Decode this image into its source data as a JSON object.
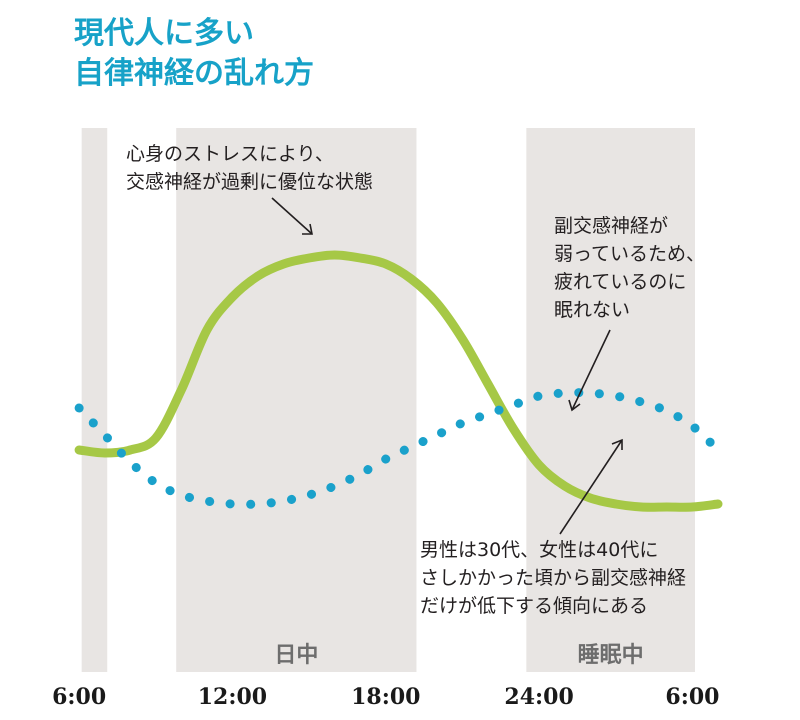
{
  "title_lines": [
    "現代人に多い",
    "自律神経の乱れ方"
  ],
  "colors": {
    "title": "#17a2c8",
    "sympathetic": "#a6c846",
    "parasympathetic": "#1aa1cb",
    "band": "#e8e5e3",
    "band_label": "#6d6d6d",
    "text": "#231f20"
  },
  "chart_data": {
    "type": "line",
    "title": "",
    "xlabel": "",
    "ylabel": "",
    "x_ticks": [
      "6:00",
      "12:00",
      "18:00",
      "24:00",
      "6:00"
    ],
    "x_tick_hours": [
      6,
      12,
      18,
      24,
      30
    ],
    "xlim": [
      5.8,
      31
    ],
    "ylim": [
      0,
      100
    ],
    "grid": false,
    "shaded_bands": [
      {
        "from": 6.1,
        "to": 7.1,
        "label": ""
      },
      {
        "from": 9.8,
        "to": 19.2,
        "label": "日中"
      },
      {
        "from": 23.5,
        "to": 30.1,
        "label": "睡眠中"
      }
    ],
    "series": [
      {
        "name": "",
        "style": "solid",
        "x": [
          6,
          7,
          8,
          9,
          10,
          11,
          12,
          13,
          14,
          15,
          16,
          17,
          18,
          19,
          20,
          21,
          22,
          23,
          24,
          25,
          26,
          27,
          28,
          29,
          30,
          31
        ],
        "y": [
          30,
          29,
          30,
          34,
          50,
          70,
          81,
          88,
          92,
          94,
          95,
          94,
          92,
          87,
          79,
          67,
          52,
          37,
          25,
          18,
          14,
          12,
          11,
          11,
          11,
          12
        ]
      },
      {
        "name": "",
        "style": "dotted",
        "x": [
          6,
          7,
          8,
          9,
          10,
          11,
          12,
          13,
          14,
          15,
          16,
          17,
          18,
          19,
          20,
          21,
          22,
          23,
          24,
          25,
          26,
          27,
          28,
          29,
          30,
          31
        ],
        "y": [
          44,
          35,
          26,
          19,
          15,
          13,
          12,
          12,
          13,
          15,
          18,
          22,
          27,
          31,
          35,
          39,
          42,
          45,
          48,
          49,
          49,
          48,
          46,
          43,
          38,
          30
        ]
      }
    ],
    "annotations": [
      {
        "lines": [
          "心身のストレスにより、",
          "交感神経が過剰に優位な状態"
        ]
      },
      {
        "lines": [
          "副交感神経が",
          "弱っているため、",
          "疲れているのに",
          "眠れない"
        ]
      },
      {
        "lines": [
          "男性は30代、女性は40代に",
          "さしかかった頃から副交感神経",
          "だけが低下する傾向にある"
        ]
      }
    ]
  }
}
